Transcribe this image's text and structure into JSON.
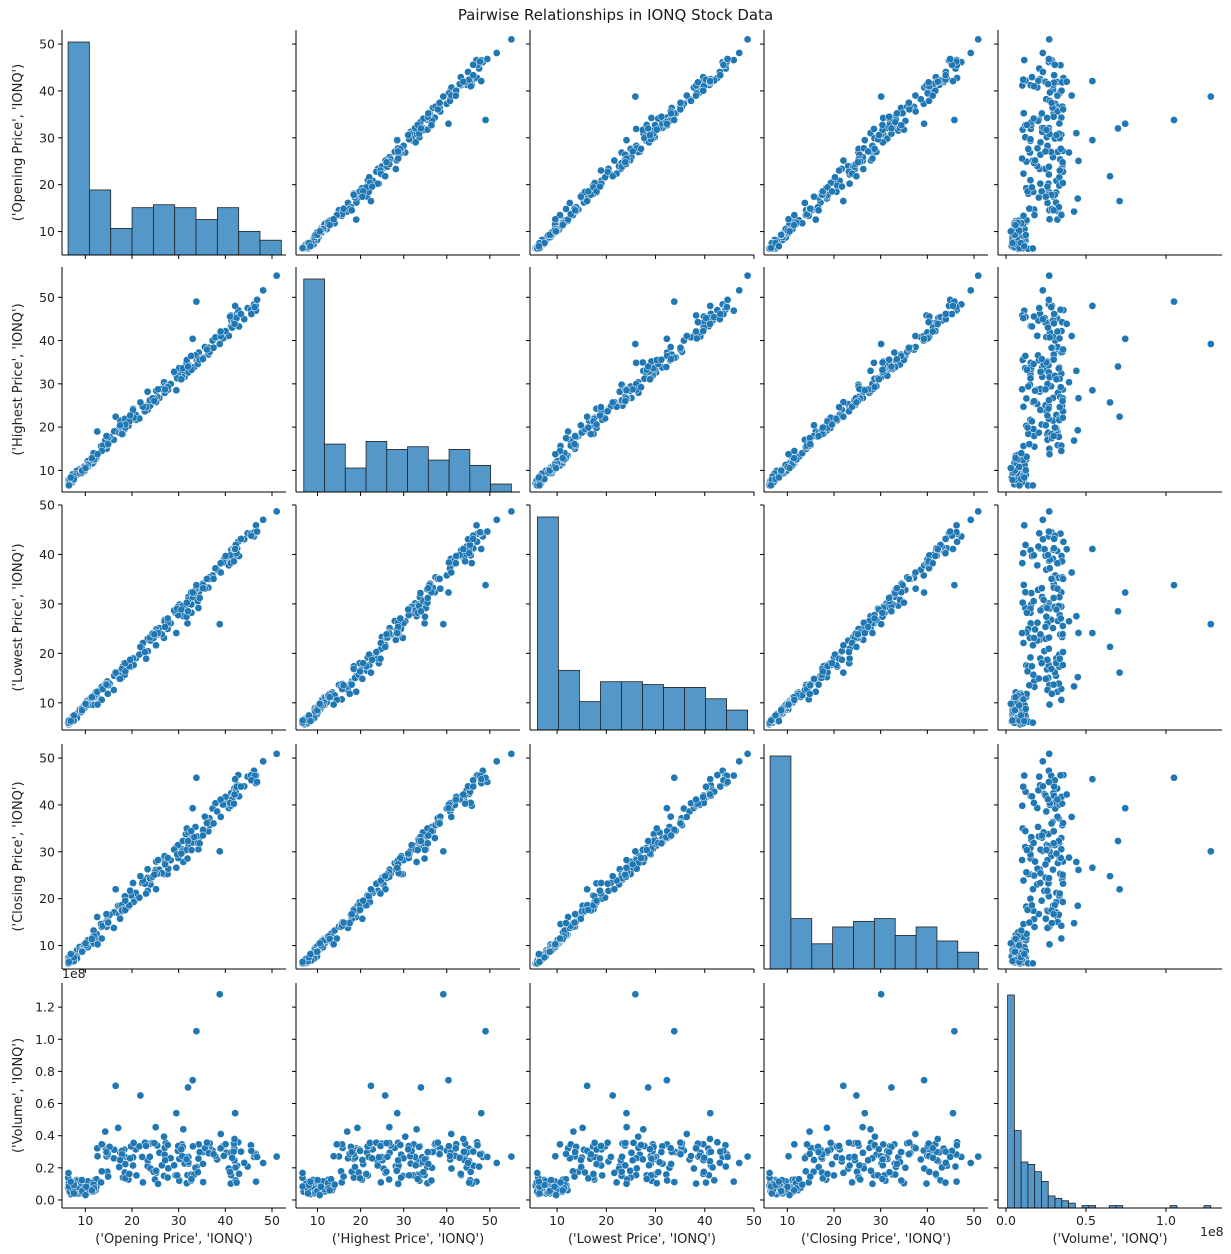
{
  "figure": {
    "title": "Pairwise Relationships in IONQ Stock Data",
    "point_color": "#1f77b4",
    "hist_color": "#5497c9",
    "offset_label": "1e8"
  },
  "chart_data": {
    "type": "scatter",
    "subtype": "pairplot",
    "title": "Pairwise Relationships in IONQ Stock Data",
    "variables": [
      "('Opening Price', 'IONQ')",
      "('Highest Price', 'IONQ')",
      "('Lowest Price', 'IONQ')",
      "('Closing Price', 'IONQ')",
      "('Volume', 'IONQ')"
    ],
    "axes": [
      {
        "name": "('Opening Price', 'IONQ')",
        "range": [
          5,
          53
        ],
        "ticks": [
          10,
          20,
          30,
          40,
          50
        ],
        "tick_labels": [
          "10",
          "20",
          "30",
          "40",
          "50"
        ]
      },
      {
        "name": "('Highest Price', 'IONQ')",
        "range": [
          5,
          57
        ],
        "ticks": [
          10,
          20,
          30,
          40,
          50
        ],
        "tick_labels": [
          "10",
          "20",
          "30",
          "40",
          "50"
        ]
      },
      {
        "name": "('Lowest Price', 'IONQ')",
        "range": [
          4.5,
          50
        ],
        "ticks": [
          10,
          20,
          30,
          40,
          50
        ],
        "tick_labels": [
          "10",
          "20",
          "30",
          "40",
          "50"
        ]
      },
      {
        "name": "('Closing Price', 'IONQ')",
        "range": [
          5,
          53
        ],
        "ticks": [
          10,
          20,
          30,
          40,
          50
        ],
        "tick_labels": [
          "10",
          "20",
          "30",
          "40",
          "50"
        ]
      },
      {
        "name": "('Volume', 'IONQ')",
        "range": [
          -5000000,
          135000000
        ],
        "ticks": [
          0,
          20000000,
          40000000,
          60000000,
          80000000,
          100000000,
          120000000
        ],
        "tick_labels": [
          "0.0",
          "0.2",
          "0.4",
          "0.6",
          "0.8",
          "1.0",
          "1.2"
        ],
        "x_ticks": [
          0,
          50000000,
          100000000
        ],
        "x_tick_labels": [
          "0.0",
          "0.5",
          "1.0"
        ],
        "x_range": [
          -5000000,
          135000000
        ],
        "offset": "1e8"
      }
    ],
    "notable_points": [
      {
        "open": 38.8,
        "high": 39.2,
        "low": 25.9,
        "close": 30.1,
        "volume": 128000000
      },
      {
        "open": 33.8,
        "high": 49.0,
        "low": 33.8,
        "close": 45.8,
        "volume": 105000000
      },
      {
        "open": 33.0,
        "high": 40.4,
        "low": 32.3,
        "close": 39.3,
        "volume": 74500000
      },
      {
        "open": 16.5,
        "high": 22.4,
        "low": 16.1,
        "close": 22.0,
        "volume": 71000000
      },
      {
        "open": 32.0,
        "high": 34.0,
        "low": 28.5,
        "close": 32.3,
        "volume": 70000000
      },
      {
        "open": 21.8,
        "high": 25.7,
        "low": 21.3,
        "close": 24.8,
        "volume": 65000000
      },
      {
        "open": 29.5,
        "high": 28.5,
        "low": 24.1,
        "close": 26.6,
        "volume": 54000000
      },
      {
        "open": 42.1,
        "high": 48.0,
        "low": 41.1,
        "close": 45.5,
        "volume": 54000000
      },
      {
        "open": 51.0,
        "high": 55.0,
        "low": 48.7,
        "close": 50.9,
        "volume": 27000000
      },
      {
        "open": 48.1,
        "high": 51.6,
        "low": 47.0,
        "close": 49.3,
        "volume": 23000000
      }
    ],
    "histograms": [
      {
        "variable": "('Opening Price', 'IONQ')",
        "bins": 10,
        "range": [
          6.3,
          52.0
        ],
        "counts": [
          72,
          22,
          9,
          16,
          17,
          16,
          12,
          16,
          8,
          5
        ]
      },
      {
        "variable": "('Highest Price', 'IONQ')",
        "bins": 10,
        "range": [
          6.8,
          55.0
        ],
        "counts": [
          80,
          18,
          9,
          19,
          16,
          17,
          12,
          16,
          10,
          3
        ]
      },
      {
        "variable": "('Lowest Price', 'IONQ')",
        "bins": 10,
        "range": [
          6.0,
          48.7
        ],
        "counts": [
          75,
          21,
          10,
          17,
          17,
          16,
          15,
          15,
          11,
          7
        ]
      },
      {
        "variable": "('Closing Price', 'IONQ')",
        "bins": 10,
        "range": [
          6.3,
          51.0
        ],
        "counts": [
          76,
          18,
          9,
          15,
          17,
          18,
          12,
          15,
          10,
          6
        ]
      },
      {
        "variable": "('Volume', 'IONQ')",
        "bins": 30,
        "range": [
          1000000,
          128000000
        ],
        "counts": [
          88,
          32,
          19,
          18,
          15,
          11,
          5,
          4,
          3,
          2,
          0,
          1,
          1,
          0,
          0,
          1,
          1,
          0,
          0,
          0,
          0,
          0,
          0,
          0,
          1,
          0,
          0,
          0,
          0,
          1
        ]
      }
    ],
    "xlabel_row": [
      "('Opening Price', 'IONQ')",
      "('Highest Price', 'IONQ')",
      "('Lowest Price', 'IONQ')",
      "('Closing Price', 'IONQ')",
      "('Volume', 'IONQ')"
    ]
  }
}
